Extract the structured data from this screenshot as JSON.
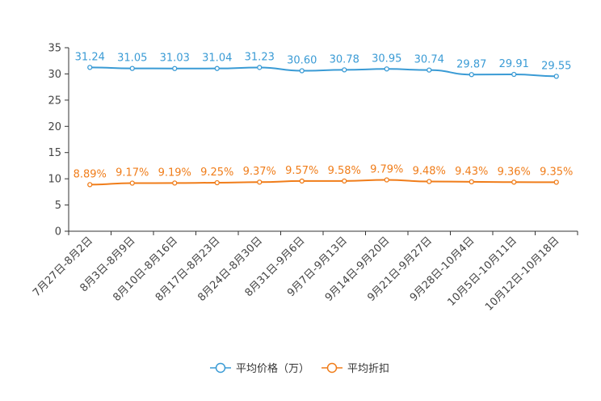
{
  "chart_data": {
    "type": "line",
    "title": "",
    "xlabel": "",
    "ylabel": "",
    "ylim": [
      0,
      35
    ],
    "yticks": [
      0,
      5,
      10,
      15,
      20,
      25,
      30,
      35
    ],
    "categories": [
      "7月27日-8月2日",
      "8月3日-8月9日",
      "8月10日-8月16日",
      "8月17日-8月23日",
      "8月24日-8月30日",
      "8月31日-9月6日",
      "9月7日-9月13日",
      "9月14日-9月20日",
      "9月21日-9月27日",
      "9月28日-10月4日",
      "10月5日-10月11日",
      "10月12日-10月18日"
    ],
    "series": [
      {
        "name": "平均价格（万）",
        "color": "#3a9bd5",
        "values": [
          31.24,
          31.05,
          31.03,
          31.04,
          31.23,
          30.6,
          30.78,
          30.95,
          30.74,
          29.87,
          29.91,
          29.55
        ],
        "labels": [
          "31.24",
          "31.05",
          "31.03",
          "31.04",
          "31.23",
          "30.60",
          "30.78",
          "30.95",
          "30.74",
          "29.87",
          "29.91",
          "29.55"
        ]
      },
      {
        "name": "平均折扣",
        "color": "#f07d1a",
        "values": [
          8.89,
          9.17,
          9.19,
          9.25,
          9.37,
          9.57,
          9.58,
          9.79,
          9.48,
          9.43,
          9.36,
          9.35
        ],
        "labels": [
          "8.89%",
          "9.17%",
          "9.19%",
          "9.25%",
          "9.37%",
          "9.57%",
          "9.58%",
          "9.79%",
          "9.48%",
          "9.43%",
          "9.36%",
          "9.35%"
        ]
      }
    ],
    "legend": "bottom-center"
  }
}
